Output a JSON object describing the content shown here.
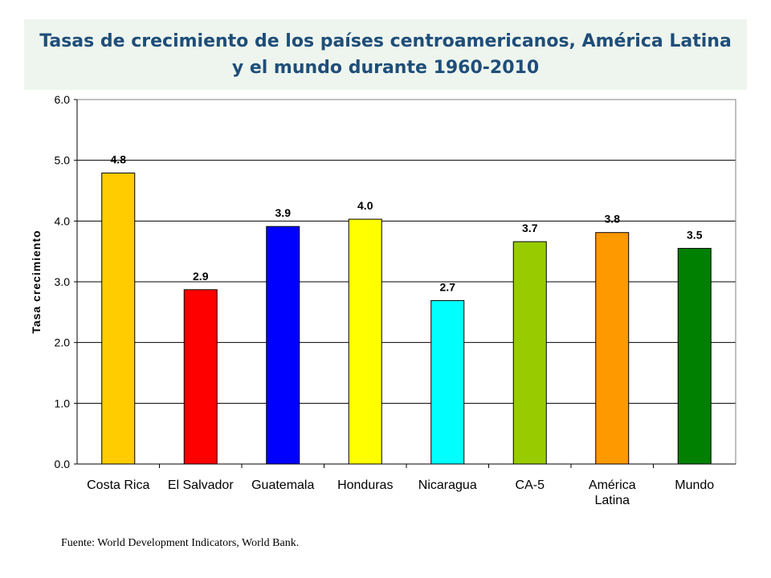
{
  "title": "Tasas de crecimiento de los países centroamericanos, América Latina y el mundo durante 1960-2010",
  "source": "Fuente: World Development Indicators, World Bank.",
  "chart_data": {
    "type": "bar",
    "title": "Tasas de crecimiento de los países centroamericanos, América Latina y el mundo durante 1960-2010",
    "xlabel": "",
    "ylabel": "Tasa crecimiento",
    "ylim": [
      0,
      6
    ],
    "yticks": [
      "0.0",
      "1.0",
      "2.0",
      "3.0",
      "4.0",
      "5.0",
      "6.0"
    ],
    "grid": true,
    "legend": "none",
    "categories": [
      [
        "Costa Rica"
      ],
      [
        "El Salvador"
      ],
      [
        "Guatemala"
      ],
      [
        "Honduras"
      ],
      [
        "Nicaragua"
      ],
      [
        "CA-5"
      ],
      [
        "América",
        "Latina"
      ],
      [
        "Mundo"
      ]
    ],
    "values": [
      4.79,
      2.87,
      3.91,
      4.03,
      2.69,
      3.66,
      3.81,
      3.55
    ],
    "data_labels": [
      "4.8",
      "2.9",
      "3.9",
      "4.0",
      "2.7",
      "3.7",
      "3.8",
      "3.5"
    ],
    "colors": [
      "#ffcc00",
      "#ff0000",
      "#0000ff",
      "#ffff00",
      "#00ffff",
      "#99cc00",
      "#ff9900",
      "#008000"
    ]
  }
}
